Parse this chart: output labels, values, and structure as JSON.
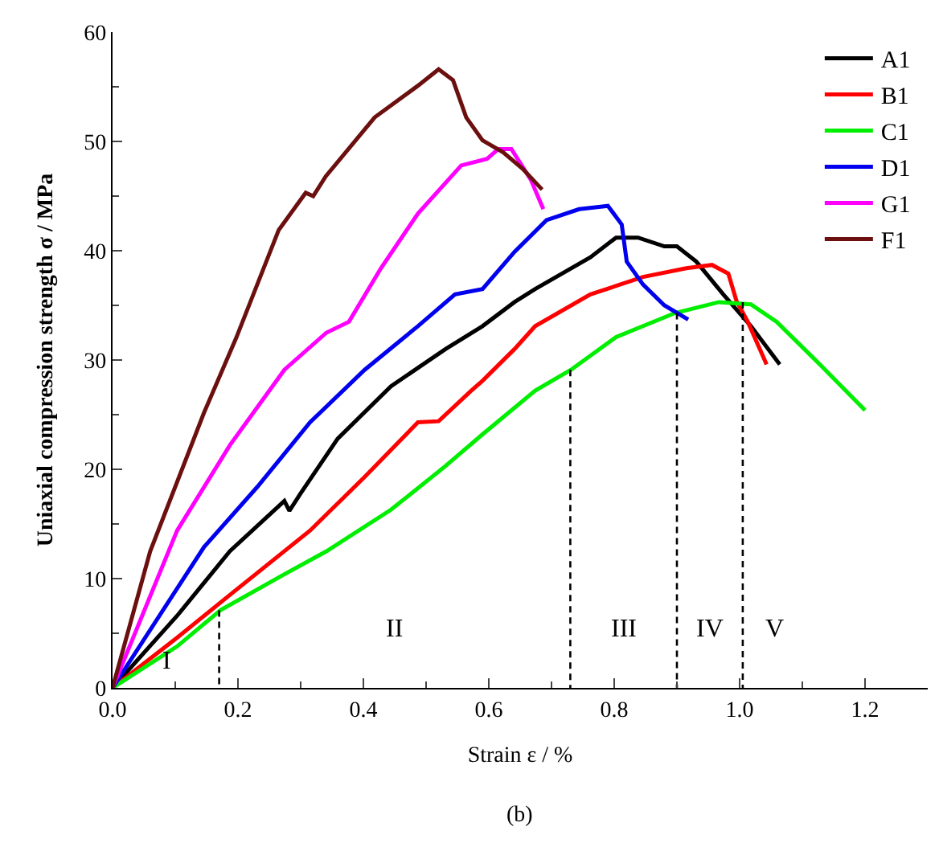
{
  "chart_data": {
    "type": "line",
    "xlabel": "Strain ε / %",
    "ylabel": "Uniaxial compression strength σ / MPa",
    "xlim": [
      0,
      1.3
    ],
    "xticks": [
      {
        "value": 0,
        "label": "0.0"
      },
      {
        "value": 0.2,
        "label": "0.2"
      },
      {
        "value": 0.4,
        "label": "0.4"
      },
      {
        "value": 0.6,
        "label": "0.6"
      },
      {
        "value": 0.8,
        "label": "0.8"
      },
      {
        "value": 1.0,
        "label": "1.0"
      },
      {
        "value": 1.2,
        "label": "1.2"
      }
    ],
    "ylim": [
      0,
      60
    ],
    "yticks": [
      0,
      10,
      20,
      30,
      40,
      50,
      60
    ],
    "legend": "top right",
    "marker": "none",
    "line_style": "solid",
    "series": [
      {
        "name": "A1",
        "color": "#000000",
        "x": [
          0,
          0.103,
          0.187,
          0.274,
          0.282,
          0.3,
          0.359,
          0.444,
          0.531,
          0.59,
          0.641,
          0.674,
          0.762,
          0.803,
          0.838,
          0.88,
          0.9,
          0.931,
          0.974,
          1.018,
          1.064
        ],
        "values": [
          0,
          6.6,
          12.5,
          17.1,
          16.2,
          17.8,
          22.8,
          27.6,
          31,
          33.1,
          35.3,
          36.5,
          39.4,
          41.2,
          41.2,
          40.4,
          40.4,
          39,
          36,
          33.1,
          29.6
        ]
      },
      {
        "name": "B1",
        "color": "#ff0000",
        "x": [
          0,
          0.103,
          0.187,
          0.315,
          0.402,
          0.487,
          0.52,
          0.572,
          0.59,
          0.641,
          0.674,
          0.762,
          0.846,
          0.915,
          0.956,
          0.982,
          0.995,
          1.013,
          1.043
        ],
        "values": [
          0,
          4.6,
          8.5,
          14.4,
          19.3,
          24.3,
          24.4,
          27.2,
          28.1,
          31,
          33.1,
          36,
          37.6,
          38.4,
          38.7,
          37.9,
          35.4,
          33.5,
          29.6
        ]
      },
      {
        "name": "C1",
        "color": "#00ee00",
        "x": [
          0,
          0.103,
          0.172,
          0.274,
          0.341,
          0.444,
          0.531,
          0.59,
          0.674,
          0.731,
          0.803,
          0.897,
          0.967,
          1.018,
          1.059,
          1.128,
          1.2
        ],
        "values": [
          0,
          3.8,
          7.1,
          10.4,
          12.5,
          16.3,
          20.3,
          23.2,
          27.2,
          29.1,
          32.1,
          34.3,
          35.3,
          35.1,
          33.5,
          29.6,
          25.4
        ]
      },
      {
        "name": "D1",
        "color": "#0000ee",
        "x": [
          0,
          0.146,
          0.231,
          0.315,
          0.402,
          0.487,
          0.546,
          0.59,
          0.641,
          0.692,
          0.744,
          0.79,
          0.812,
          0.82,
          0.846,
          0.88,
          0.918
        ],
        "values": [
          0,
          12.9,
          18.4,
          24.3,
          29.1,
          33.1,
          36,
          36.5,
          39.9,
          42.8,
          43.8,
          44.1,
          42.4,
          39,
          36.9,
          35,
          33.7
        ]
      },
      {
        "name": "G1",
        "color": "#ff00ff",
        "x": [
          0,
          0.103,
          0.187,
          0.274,
          0.341,
          0.377,
          0.428,
          0.487,
          0.556,
          0.597,
          0.615,
          0.636,
          0.667,
          0.687
        ],
        "values": [
          0,
          14.4,
          22.2,
          29.1,
          32.5,
          33.5,
          38.4,
          43.4,
          47.8,
          48.4,
          49.3,
          49.3,
          46.5,
          43.8
        ]
      },
      {
        "name": "F1",
        "color": "#6b0f0f",
        "x": [
          0,
          0.06,
          0.146,
          0.197,
          0.265,
          0.308,
          0.32,
          0.34,
          0.418,
          0.487,
          0.52,
          0.543,
          0.564,
          0.59,
          0.623,
          0.654,
          0.685
        ],
        "values": [
          0,
          12.5,
          25.2,
          32,
          41.9,
          45.3,
          45,
          46.8,
          52.2,
          55.1,
          56.6,
          55.6,
          52.2,
          50.1,
          49,
          47.5,
          45.6
        ]
      },
      {
        "color": "#000000",
        "line_style": "dashed",
        "x": [
          0.17,
          0.17
        ],
        "values": [
          7.1,
          0
        ]
      },
      {
        "color": "#000000",
        "line_style": "dashed",
        "x": [
          0.73,
          0.73
        ],
        "values": [
          29.1,
          0
        ]
      },
      {
        "color": "#000000",
        "line_style": "dashed",
        "x": [
          0.9,
          0.9
        ],
        "values": [
          34.3,
          0
        ]
      },
      {
        "color": "#000000",
        "line_style": "dashed",
        "x": [
          1.005,
          1.005
        ],
        "values": [
          35.3,
          0
        ]
      }
    ],
    "annotations": [
      "I",
      "II",
      "III",
      "IV",
      "V",
      "(b)"
    ]
  }
}
